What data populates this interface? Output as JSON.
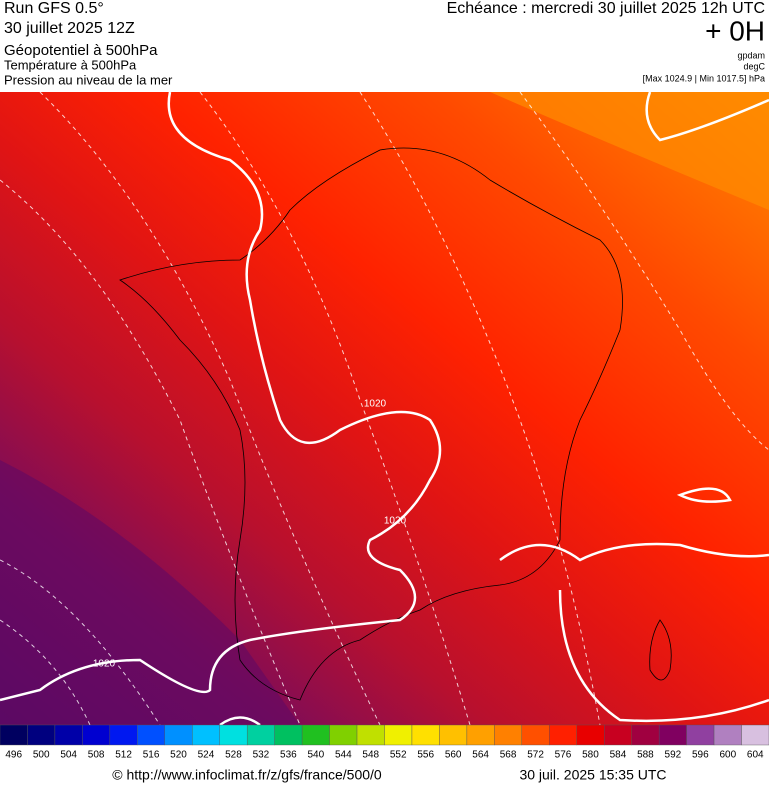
{
  "header": {
    "run": "Run GFS 0.5°",
    "date": "30 juillet 2025 12Z",
    "field": "Géopotentiel à 500hPa",
    "temperature": "Température à 500hPa",
    "pressure": "Pression au niveau de la mer",
    "echeance": "Echéance : mercredi 30 juillet 2025 12h UTC",
    "offset": "+ 0H",
    "unit_geopotential": "gpdam",
    "unit_temperature": "degC",
    "pressure_range": "[Max 1024.9 | Min 1017.5] hPa"
  },
  "map": {
    "isobar_labels": [
      "1020",
      "1020",
      "1020"
    ]
  },
  "colorbar": {
    "ticks": [
      496,
      500,
      504,
      508,
      512,
      516,
      520,
      524,
      528,
      532,
      536,
      540,
      544,
      548,
      552,
      556,
      560,
      564,
      568,
      572,
      576,
      580,
      584,
      588,
      592,
      596,
      600,
      604
    ],
    "colors": [
      "#000060",
      "#00007f",
      "#0000a8",
      "#0000d0",
      "#0018f0",
      "#0050ff",
      "#0090ff",
      "#00c0ff",
      "#00e0e0",
      "#00d0a0",
      "#00c060",
      "#20c020",
      "#80d000",
      "#c0e000",
      "#f0f000",
      "#ffe000",
      "#ffc000",
      "#ffa000",
      "#ff8000",
      "#ff5000",
      "#ff2000",
      "#e80000",
      "#c80020",
      "#a00040",
      "#800060",
      "#9040a0",
      "#b080c0",
      "#d8c0e0"
    ]
  },
  "footer": {
    "url": "© http://www.infoclimat.fr/z/gfs/france/500/0",
    "timestamp": "30 juil. 2025 15:35 UTC"
  }
}
